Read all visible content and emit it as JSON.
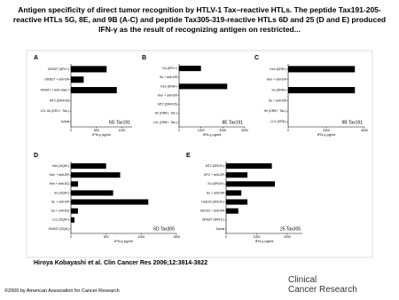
{
  "header": {
    "title": "Antigen specificity of direct tumor recognition by HTLV-1 Tax–reactive HTLs. The peptide Tax191-205-reactive HTLs 5G, 8E, and 9B (A-C) and peptide Tax305-319-reactive HTLs 6D and 25 (D and E) produced IFN-γ as the result of recognizing antigen on restricted..."
  },
  "chart_data": [
    {
      "type": "bar",
      "label": "A",
      "subtitle": "5G Tax191",
      "xlabel": "IFN-γ pg/ml",
      "color": "#000000",
      "categories": [
        "OKM27 (DR1+)",
        "OKM27 + anti-DR",
        "OKM27 + anti-class I",
        "MT2 (DR4/15)",
        "LCL Su (DR1+, Tax-)",
        "Jurkat"
      ],
      "values": [
        700,
        250,
        900,
        0,
        0,
        0
      ],
      "xlim": [
        0,
        1200
      ],
      "xticks": [
        0,
        500,
        1000
      ]
    },
    {
      "type": "bar",
      "label": "B",
      "subtitle": "8E Tax191",
      "xlabel": "IFN-γ pg/ml",
      "color": "#000000",
      "categories": [
        "Su (DR1+)",
        "Su + anti-DR",
        "Ken (DR8+)",
        "Ken + anti-DR",
        "MT2 (DR4/15)",
        "Hir (DR8+, Tax-)",
        "LCL (DR8+, Tax-)"
      ],
      "values": [
        1000,
        0,
        2200,
        0,
        0,
        0,
        0
      ],
      "xlim": [
        0,
        3000
      ],
      "xticks": [
        0,
        1000,
        2000,
        3000
      ]
    },
    {
      "type": "bar",
      "label": "C",
      "subtitle": "9B Tax191",
      "xlabel": "IFN-γ pg/ml",
      "color": "#000000",
      "categories": [
        "Ken (DR8+)",
        "Ken + anti-DR",
        "Su (DR8+)",
        "Su + anti-DR",
        "Hir (DR8+, Tax-)",
        "LCL (DR8-)"
      ],
      "values": [
        3500,
        0,
        3500,
        0,
        0,
        0
      ],
      "xlim": [
        0,
        4000
      ],
      "xticks": [
        0,
        2000,
        4000
      ]
    },
    {
      "type": "bar",
      "label": "D",
      "subtitle": "6D Tax305",
      "xlabel": "IFN-γ pg/ml",
      "color": "#000000",
      "categories": [
        "Ken (DQ6+)",
        "Ken + anti-DR",
        "Ken + anti-DQ",
        "Su (DQ6+)",
        "Su + anti-DR",
        "Su + anti-DQ",
        "LCL (DQ6+)",
        "OKM27 (DQ6-)"
      ],
      "values": [
        500,
        700,
        100,
        600,
        1100,
        100,
        50,
        0
      ],
      "xlim": [
        0,
        1500
      ],
      "xticks": [
        0,
        500,
        1000,
        1500
      ]
    },
    {
      "type": "bar",
      "label": "E",
      "subtitle": "25 Tax305",
      "xlabel": "IFN-γ pg/ml",
      "color": "#000000",
      "categories": [
        "MT2 (DR15+)",
        "MT2 + anti-DR",
        "Su (DR15+)",
        "Su + anti-DR",
        "Hut102 (DR15+)",
        "Hut102 + anti-DR",
        "OKM27 (DR15-)",
        "Jurkat"
      ],
      "values": [
        1500,
        700,
        1600,
        500,
        700,
        400,
        0,
        0
      ],
      "xlim": [
        0,
        2500
      ],
      "xticks": [
        0,
        1000,
        2000
      ]
    }
  ],
  "footer": {
    "citation": "Hiroya Kobayashi et al. Clin Cancer Res 2006;12:3814-3822",
    "copyright": "©2006 by American Association for Cancer Research",
    "logo_line1": "Clinical",
    "logo_line2": "Cancer Research"
  }
}
